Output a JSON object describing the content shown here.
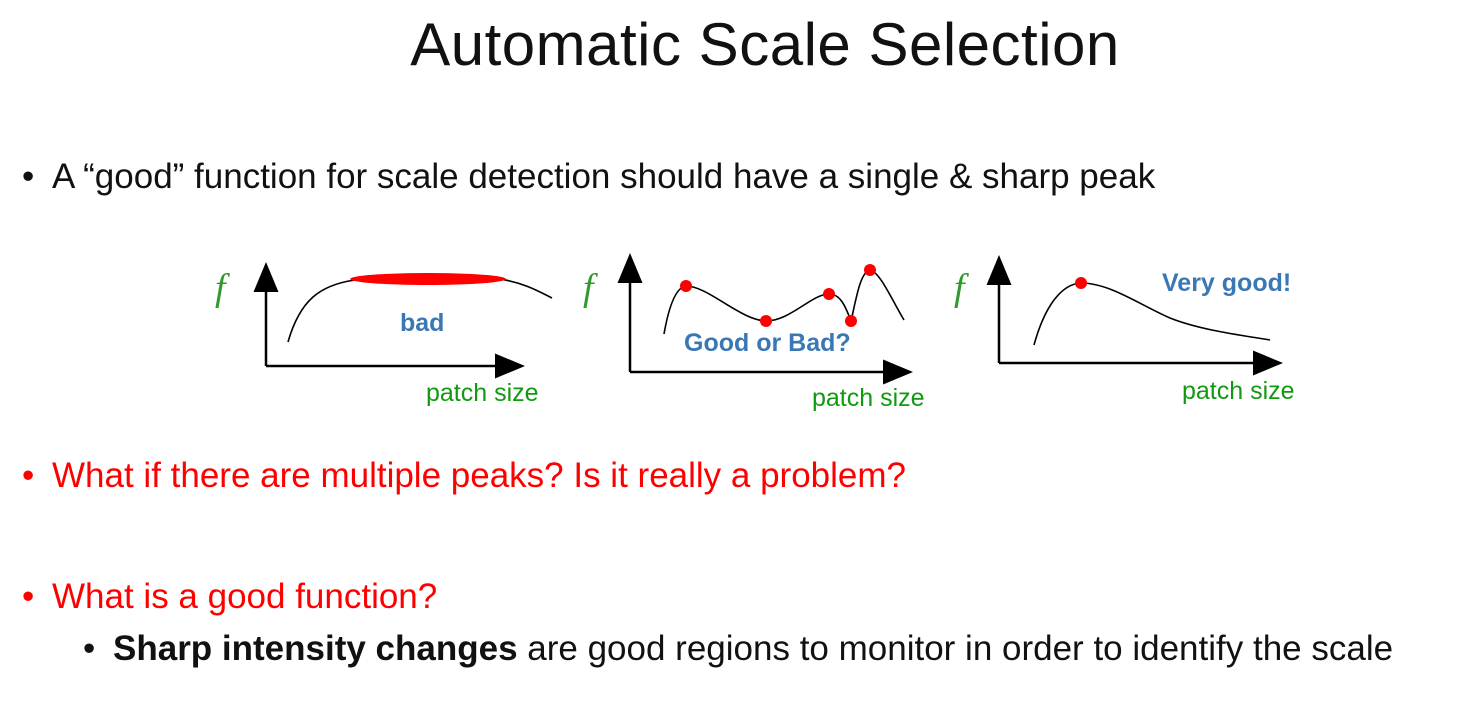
{
  "title": "Automatic Scale Selection",
  "bullets": {
    "b1": "A “good” function for scale detection should have a single & sharp peak",
    "b2": "What if there are multiple peaks? Is it really a problem?",
    "b3": "What is a good function?",
    "b4_bold": "Sharp intensity changes",
    "b4_rest": " are good regions to monitor in order to identify the scale",
    "bullet_char": "•"
  },
  "diagrams": [
    {
      "y_label": "f",
      "x_label": "patch size",
      "note": "bad"
    },
    {
      "y_label": "f",
      "x_label": "patch size",
      "note": "Good or Bad?"
    },
    {
      "y_label": "f",
      "x_label": "patch size",
      "note": "Very good!"
    }
  ],
  "colors": {
    "red": "#ff0000",
    "green": "#109a10",
    "blue": "#3a78b5",
    "marker": "#ff0000"
  }
}
